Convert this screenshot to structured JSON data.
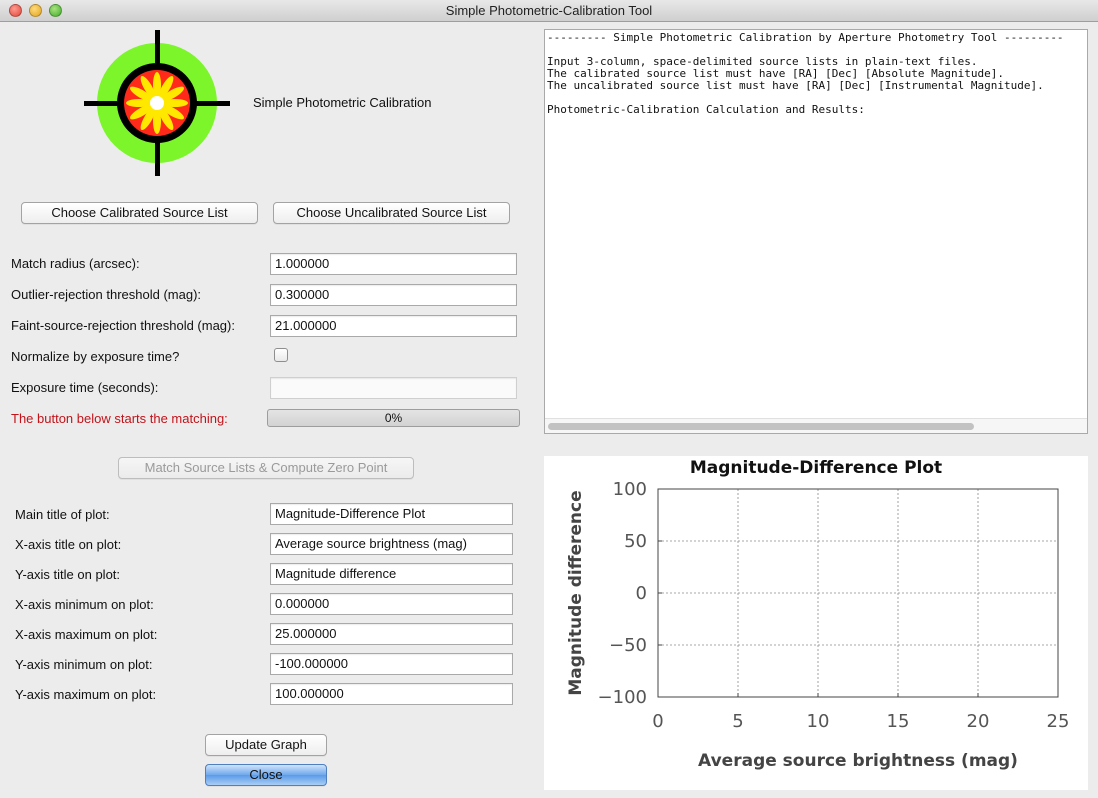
{
  "window": {
    "title": "Simple Photometric-Calibration Tool"
  },
  "header": {
    "logo_label": "Simple Photometric Calibration"
  },
  "buttons": {
    "choose_calibrated": "Choose Calibrated Source List",
    "choose_uncalibrated": "Choose Uncalibrated Source List",
    "match": "Match Source Lists & Compute Zero Point",
    "update": "Update Graph",
    "close": "Close"
  },
  "params": {
    "match_radius_label": "Match radius (arcsec):",
    "match_radius_value": "1.000000",
    "outlier_label": "Outlier-rejection threshold (mag):",
    "outlier_value": "0.300000",
    "faint_label": "Faint-source-rejection threshold (mag):",
    "faint_value": "21.000000",
    "normalize_label": "Normalize by exposure time?",
    "normalize_checked": false,
    "exposure_label": "Exposure time (seconds):",
    "exposure_value": "",
    "start_label": "The button below starts the matching:",
    "progress_text": "0%",
    "progress_fraction": 0
  },
  "plot_settings": {
    "main_title_label": "Main title of plot:",
    "main_title_value": "Magnitude-Difference Plot",
    "xtitle_label": "X-axis title on plot:",
    "xtitle_value": "Average source brightness (mag)",
    "ytitle_label": "Y-axis title on plot:",
    "ytitle_value": "Magnitude difference",
    "xmin_label": "X-axis minimum on plot:",
    "xmin_value": "0.000000",
    "xmax_label": "X-axis maximum on plot:",
    "xmax_value": "25.000000",
    "ymin_label": "Y-axis minimum on plot:",
    "ymin_value": "-100.000000",
    "ymax_label": "Y-axis maximum on plot:",
    "ymax_value": "100.000000"
  },
  "output": {
    "lines": [
      "--------- Simple Photometric Calibration by Aperture Photometry Tool ---------",
      "",
      "Input 3-column, space-delimited source lists in plain-text files.",
      "The calibrated source list must have [RA] [Dec] [Absolute Magnitude].",
      "The uncalibrated source list must have [RA] [Dec] [Instrumental Magnitude].",
      "",
      "Photometric-Calibration Calculation and Results:"
    ]
  },
  "chart_data": {
    "type": "scatter",
    "title": "Magnitude-Difference Plot",
    "xlabel": "Average source brightness (mag)",
    "ylabel": "Magnitude difference",
    "xlim": [
      0,
      25
    ],
    "ylim": [
      -100,
      100
    ],
    "x_ticks": [
      "0",
      "5",
      "10",
      "15",
      "20",
      "25"
    ],
    "y_ticks": [
      "100",
      "50",
      "0",
      "−50",
      "−100"
    ],
    "grid": true,
    "series": []
  }
}
